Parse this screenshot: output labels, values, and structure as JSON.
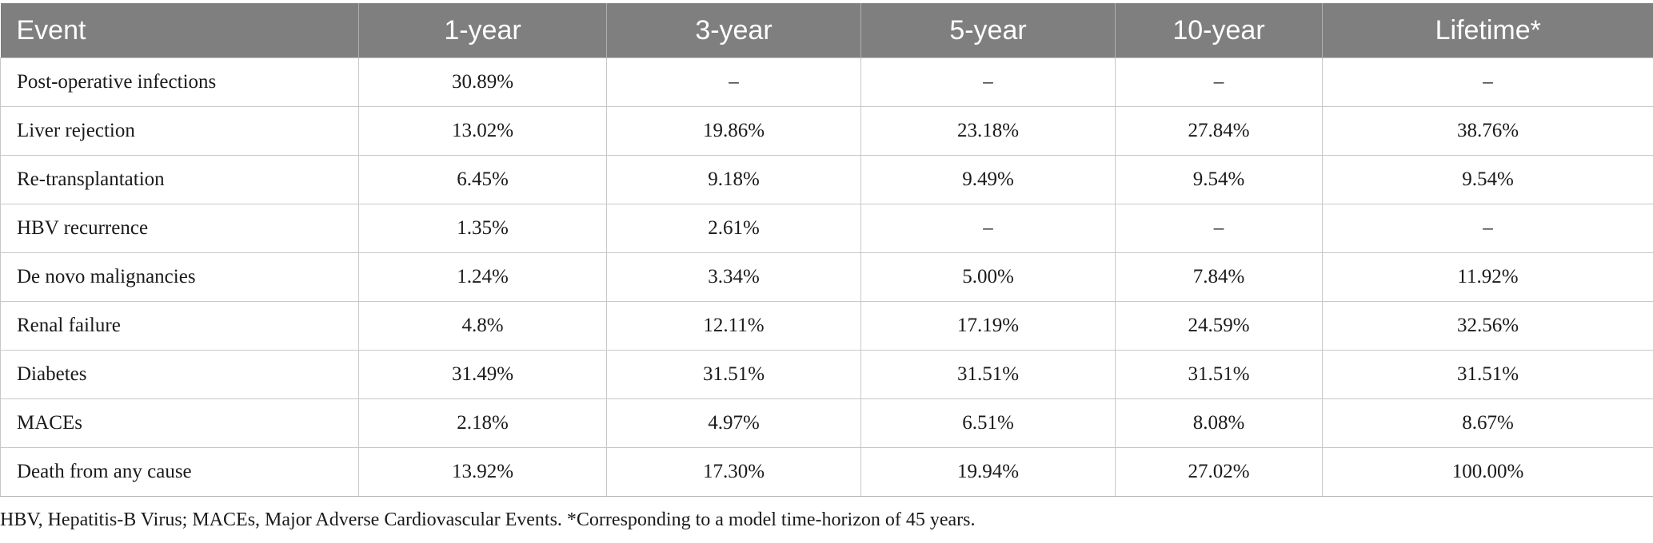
{
  "table": {
    "headers": [
      "Event",
      "1-year",
      "3-year",
      "5-year",
      "10-year",
      "Lifetime*"
    ],
    "rows": [
      [
        "Post-operative infections",
        "30.89%",
        "–",
        "–",
        "–",
        "–"
      ],
      [
        "Liver rejection",
        "13.02%",
        "19.86%",
        "23.18%",
        "27.84%",
        "38.76%"
      ],
      [
        "Re-transplantation",
        "6.45%",
        "9.18%",
        "9.49%",
        "9.54%",
        "9.54%"
      ],
      [
        "HBV recurrence",
        "1.35%",
        "2.61%",
        "–",
        "–",
        "–"
      ],
      [
        "De novo malignancies",
        "1.24%",
        "3.34%",
        "5.00%",
        "7.84%",
        "11.92%"
      ],
      [
        "Renal failure",
        "4.8%",
        "12.11%",
        "17.19%",
        "24.59%",
        "32.56%"
      ],
      [
        "Diabetes",
        "31.49%",
        "31.51%",
        "31.51%",
        "31.51%",
        "31.51%"
      ],
      [
        "MACEs",
        "2.18%",
        "4.97%",
        "6.51%",
        "8.08%",
        "8.67%"
      ],
      [
        "Death from any cause",
        "13.92%",
        "17.30%",
        "19.94%",
        "27.02%",
        "100.00%"
      ]
    ]
  },
  "footnote": "HBV, Hepatitis-B Virus; MACEs, Major Adverse Cardiovascular Events. *Corresponding to a model time-horizon of 45 years.",
  "colors": {
    "header_bg": "#7f7f7f",
    "header_text": "#ffffff",
    "grid": "#c8c8c8"
  }
}
